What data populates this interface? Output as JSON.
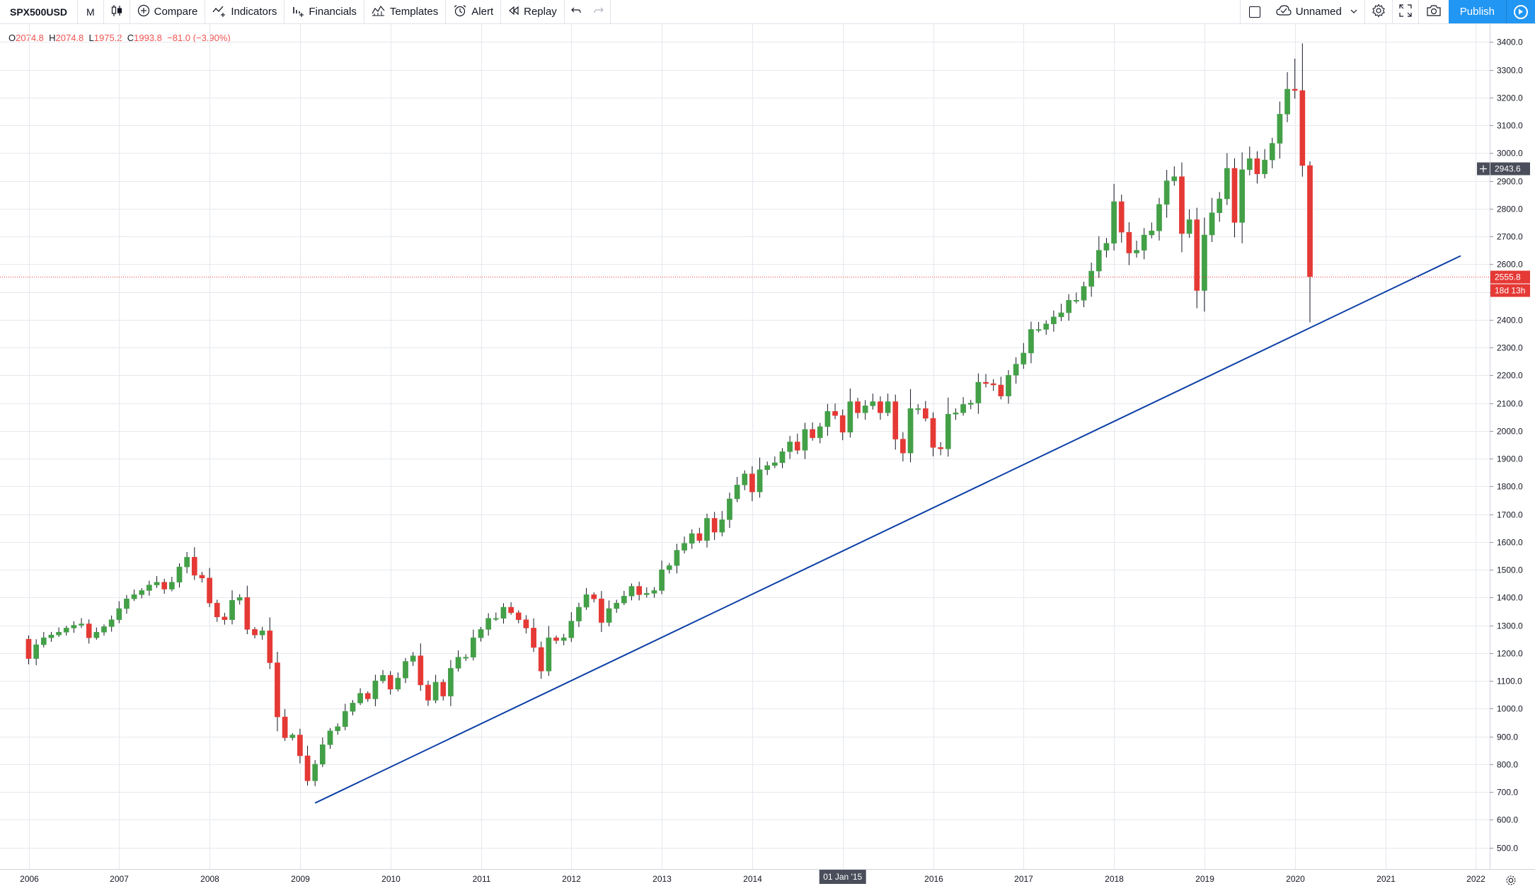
{
  "toolbar": {
    "symbol": "SPX500USD",
    "interval": "M",
    "compare_label": "Compare",
    "indicators_label": "Indicators",
    "financials_label": "Financials",
    "templates_label": "Templates",
    "alert_label": "Alert",
    "replay_label": "Replay",
    "layout_name": "Unnamed",
    "publish_label": "Publish"
  },
  "legend": {
    "o_key": "O",
    "o_val": "2074.8",
    "h_key": "H",
    "h_val": "2074.8",
    "l_key": "L",
    "l_val": "1975.2",
    "c_key": "C",
    "c_val": "1993.8",
    "change": "−81.0 (−3.90%)"
  },
  "price_labels": {
    "crosshair": "2943.6",
    "last_price": "2555.8",
    "countdown": "18d 13h"
  },
  "time_badge": "01 Jan '15",
  "colors": {
    "up": "#43a047",
    "down": "#e53935",
    "trendline": "#0d3fa6",
    "last_price": "#e53935",
    "grid": "#e6e8ee",
    "accent": "#2196f3"
  },
  "chart_data": {
    "type": "candlestick",
    "interval": "monthly",
    "y_range": [
      450,
      3420
    ],
    "y_ticks": [
      "3400.0",
      "3300.0",
      "3200.0",
      "3100.0",
      "3000.0",
      "2900.0",
      "2800.0",
      "2700.0",
      "2600.0",
      "2500.0",
      "2400.0",
      "2300.0",
      "2200.0",
      "2100.0",
      "2000.0",
      "1900.0",
      "1800.0",
      "1700.0",
      "1600.0",
      "1500.0",
      "1400.0",
      "1300.0",
      "1200.0",
      "1100.0",
      "1000.0",
      "900.0",
      "800.0",
      "700.0",
      "600.0",
      "500.0"
    ],
    "x_ticks": [
      "2006",
      "2007",
      "2008",
      "2009",
      "2010",
      "2011",
      "2012",
      "2013",
      "2014",
      "2015",
      "2016",
      "2017",
      "2018",
      "2019",
      "2020",
      "2021",
      "2022"
    ],
    "series_closes": [
      1180,
      1230,
      1255,
      1265,
      1275,
      1290,
      1300,
      1305,
      1255,
      1275,
      1295,
      1320,
      1360,
      1395,
      1410,
      1425,
      1445,
      1455,
      1430,
      1455,
      1510,
      1545,
      1480,
      1470,
      1380,
      1330,
      1320,
      1390,
      1400,
      1285,
      1265,
      1280,
      1165,
      970,
      895,
      905,
      830,
      740,
      800,
      870,
      920,
      935,
      990,
      1020,
      1055,
      1035,
      1100,
      1120,
      1070,
      1110,
      1170,
      1190,
      1085,
      1030,
      1095,
      1045,
      1145,
      1185,
      1185,
      1255,
      1285,
      1325,
      1325,
      1365,
      1345,
      1320,
      1290,
      1220,
      1135,
      1255,
      1245,
      1255,
      1315,
      1365,
      1410,
      1395,
      1310,
      1360,
      1380,
      1405,
      1440,
      1410,
      1415,
      1425,
      1500,
      1515,
      1570,
      1595,
      1630,
      1605,
      1685,
      1635,
      1680,
      1755,
      1805,
      1845,
      1780,
      1860,
      1875,
      1885,
      1925,
      1960,
      1930,
      2005,
      1975,
      2015,
      2070,
      2055,
      1995,
      2105,
      2065,
      2090,
      2105,
      2065,
      2105,
      1970,
      1920,
      2080,
      2080,
      2045,
      1940,
      1935,
      2060,
      2065,
      2095,
      2100,
      2175,
      2170,
      2165,
      2125,
      2200,
      2240,
      2280,
      2365,
      2365,
      2385,
      2410,
      2425,
      2470,
      2470,
      2520,
      2575,
      2650,
      2675,
      2825,
      2715,
      2640,
      2650,
      2705,
      2720,
      2815,
      2900,
      2915,
      2710,
      2760,
      2505,
      2705,
      2785,
      2835,
      2945,
      2750,
      2940,
      2980,
      2925,
      2975,
      3035,
      3140,
      3230,
      3225,
      2955,
      2555
    ],
    "first_open": 1250,
    "first_month": "2006-01",
    "last_month": "2020-03",
    "trendline": {
      "start": [
        "2009-03",
        660
      ],
      "end": [
        "2021-11",
        2630
      ]
    },
    "last_price": 2555.8
  }
}
